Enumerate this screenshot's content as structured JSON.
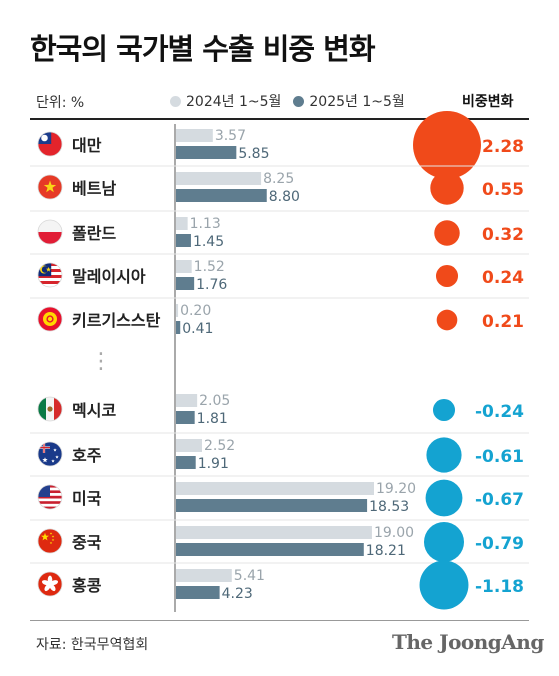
{
  "title": "한국의 국가별 수출 비중 변화",
  "unit_label": "단위: %",
  "source": "자료: 한국무역협회",
  "brand": "The JoongAng",
  "colors": {
    "bar_2024": "#d5dbe0",
    "bar_2025": "#5f7d8f",
    "positive": "#f04a1a",
    "negative": "#14a3d1",
    "label_2024": "#9aa4ab",
    "label_2025": "#4e6878"
  },
  "chart_data": {
    "type": "bar",
    "legend": [
      "2024년 1~5월",
      "2025년 1~5월"
    ],
    "change_header": "비중변화",
    "ellipsis": "⋮",
    "ylim": [
      0,
      20
    ],
    "rows": [
      {
        "country": "대만",
        "flag": "taiwan-flag-icon",
        "v2024": 3.57,
        "v2025": 5.85,
        "change": 2.28,
        "v2024_label": "3.57",
        "v2025_label": "5.85",
        "change_label": "2.28"
      },
      {
        "country": "베트남",
        "flag": "vietnam-flag-icon",
        "v2024": 8.25,
        "v2025": 8.8,
        "change": 0.55,
        "v2024_label": "8.25",
        "v2025_label": "8.80",
        "change_label": "0.55"
      },
      {
        "country": "폴란드",
        "flag": "poland-flag-icon",
        "v2024": 1.13,
        "v2025": 1.45,
        "change": 0.32,
        "v2024_label": "1.13",
        "v2025_label": "1.45",
        "change_label": "0.32"
      },
      {
        "country": "말레이시아",
        "flag": "malaysia-flag-icon",
        "v2024": 1.52,
        "v2025": 1.76,
        "change": 0.24,
        "v2024_label": "1.52",
        "v2025_label": "1.76",
        "change_label": "0.24"
      },
      {
        "country": "키르기스스탄",
        "flag": "kyrgyzstan-flag-icon",
        "v2024": 0.2,
        "v2025": 0.41,
        "change": 0.21,
        "v2024_label": "0.20",
        "v2025_label": "0.41",
        "change_label": "0.21"
      },
      {
        "country": "멕시코",
        "flag": "mexico-flag-icon",
        "v2024": 2.05,
        "v2025": 1.81,
        "change": -0.24,
        "v2024_label": "2.05",
        "v2025_label": "1.81",
        "change_label": "-0.24"
      },
      {
        "country": "호주",
        "flag": "australia-flag-icon",
        "v2024": 2.52,
        "v2025": 1.91,
        "change": -0.61,
        "v2024_label": "2.52",
        "v2025_label": "1.91",
        "change_label": "-0.61"
      },
      {
        "country": "미국",
        "flag": "usa-flag-icon",
        "v2024": 19.2,
        "v2025": 18.53,
        "change": -0.67,
        "v2024_label": "19.20",
        "v2025_label": "18.53",
        "change_label": "-0.67"
      },
      {
        "country": "중국",
        "flag": "china-flag-icon",
        "v2024": 19.0,
        "v2025": 18.21,
        "change": -0.79,
        "v2024_label": "19.00",
        "v2025_label": "18.21",
        "change_label": "-0.79"
      },
      {
        "country": "홍콩",
        "flag": "hongkong-flag-icon",
        "v2024": 5.41,
        "v2025": 4.23,
        "change": -1.18,
        "v2024_label": "5.41",
        "v2025_label": "4.23",
        "change_label": "-1.18"
      }
    ]
  }
}
